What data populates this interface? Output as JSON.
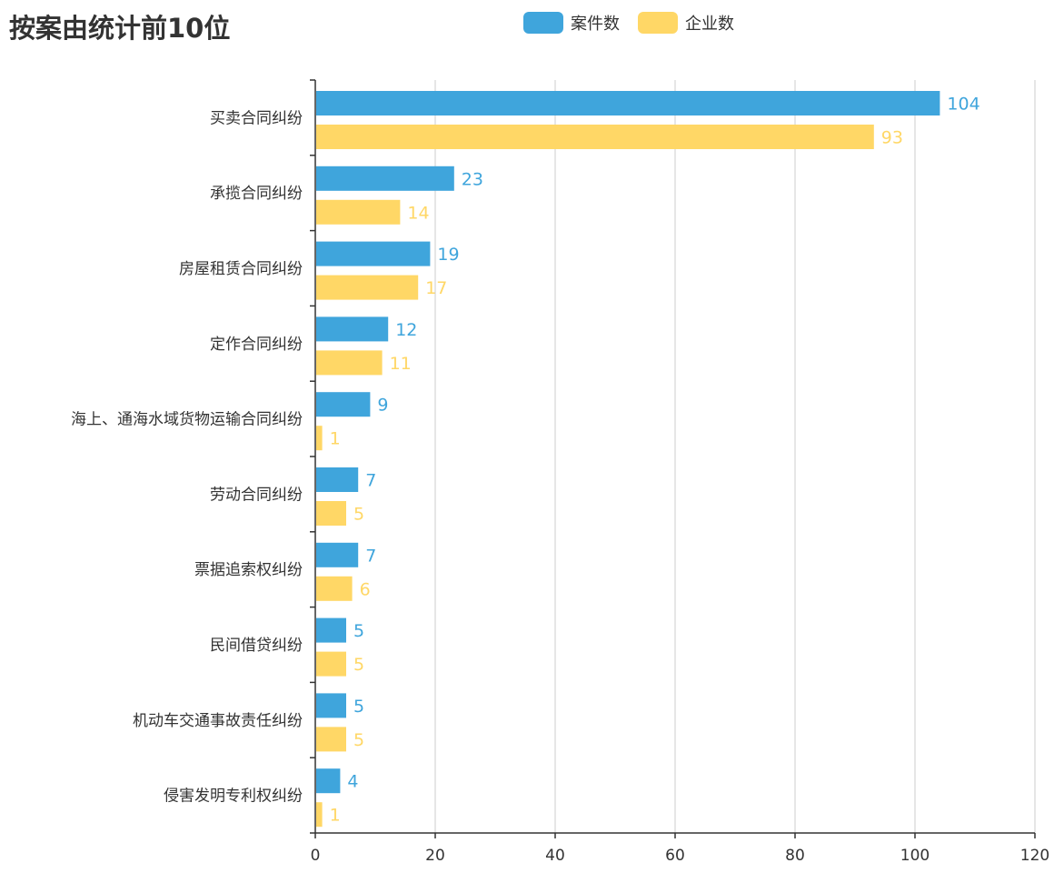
{
  "chart_data": {
    "type": "bar",
    "orientation": "horizontal",
    "title": "按案由统计前10位",
    "categories": [
      "买卖合同纠纷",
      "承揽合同纠纷",
      "房屋租赁合同纠纷",
      "定作合同纠纷",
      "海上、通海水域货物运输合同纠纷",
      "劳动合同纠纷",
      "票据追索权纠纷",
      "民间借贷纠纷",
      "机动车交通事故责任纠纷",
      "侵害发明专利权纠纷"
    ],
    "series": [
      {
        "name": "案件数",
        "color": "#3fa5dc",
        "values": [
          104,
          23,
          19,
          12,
          9,
          7,
          7,
          5,
          5,
          4
        ]
      },
      {
        "name": "企业数",
        "color": "#ffd766",
        "values": [
          93,
          14,
          17,
          11,
          1,
          5,
          6,
          5,
          5,
          1
        ]
      }
    ],
    "xlim": [
      0,
      120
    ],
    "xticks": [
      0,
      20,
      40,
      60,
      80,
      100,
      120
    ],
    "grid": true,
    "legend_position": "top-center"
  }
}
